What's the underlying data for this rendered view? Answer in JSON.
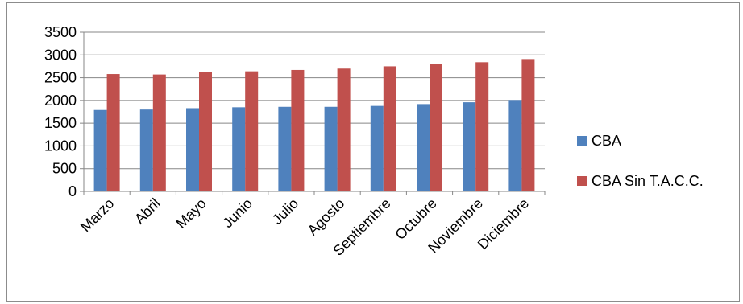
{
  "chart_data": {
    "type": "bar",
    "categories": [
      "Marzo",
      "Abril",
      "Mayo",
      "Junio",
      "Julio",
      "Agosto",
      "Septiembre",
      "Octubre",
      "Noviembre",
      "Diciembre"
    ],
    "series": [
      {
        "name": "CBA",
        "color": "#4f81bd",
        "values": [
          1790,
          1800,
          1830,
          1850,
          1860,
          1860,
          1880,
          1920,
          1960,
          2010
        ]
      },
      {
        "name": "CBA Sin T.A.C.C.",
        "color": "#c0504d",
        "values": [
          2580,
          2570,
          2620,
          2640,
          2670,
          2700,
          2750,
          2810,
          2840,
          2910
        ]
      }
    ],
    "ylim": [
      0,
      3500
    ],
    "yticks": [
      "0",
      "500",
      "1000",
      "1500",
      "2000",
      "2500",
      "3000",
      "3500"
    ],
    "grid": true,
    "legend": "right",
    "title": "",
    "xlabel": "",
    "ylabel": ""
  }
}
